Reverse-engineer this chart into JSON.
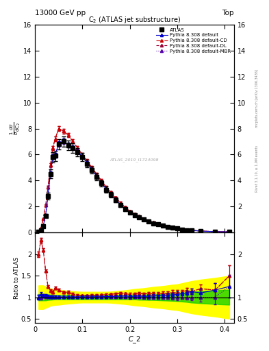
{
  "title_top": "13000 GeV pp",
  "title_right": "Top",
  "plot_title": "C$_2$ (ATLAS jet substructure)",
  "xlabel": "C_2",
  "ylabel_main": "$\\frac{1}{\\sigma}\\frac{d\\sigma}{dC_2}$",
  "ylabel_ratio": "Ratio to ATLAS",
  "watermark": "ATLAS_2019_I1724098",
  "ylim_main": [
    0,
    16
  ],
  "ylim_ratio": [
    0.4,
    2.51
  ],
  "x_data": [
    0.0075,
    0.0125,
    0.0175,
    0.0225,
    0.0275,
    0.0325,
    0.0375,
    0.0425,
    0.05,
    0.06,
    0.07,
    0.08,
    0.09,
    0.1,
    0.11,
    0.12,
    0.13,
    0.14,
    0.15,
    0.16,
    0.17,
    0.18,
    0.19,
    0.2,
    0.21,
    0.22,
    0.23,
    0.24,
    0.25,
    0.26,
    0.27,
    0.28,
    0.29,
    0.3,
    0.31,
    0.32,
    0.33,
    0.35,
    0.38,
    0.41
  ],
  "atlas_y": [
    0.05,
    0.15,
    0.5,
    1.3,
    2.8,
    4.5,
    5.8,
    5.9,
    6.8,
    7.0,
    6.7,
    6.5,
    6.2,
    5.8,
    5.3,
    4.8,
    4.3,
    3.8,
    3.3,
    2.9,
    2.5,
    2.1,
    1.8,
    1.55,
    1.35,
    1.15,
    1.0,
    0.85,
    0.72,
    0.62,
    0.52,
    0.44,
    0.37,
    0.3,
    0.24,
    0.19,
    0.15,
    0.1,
    0.06,
    0.04
  ],
  "atlas_yerr": [
    0.01,
    0.03,
    0.08,
    0.15,
    0.25,
    0.35,
    0.4,
    0.4,
    0.4,
    0.4,
    0.38,
    0.35,
    0.32,
    0.32,
    0.3,
    0.28,
    0.26,
    0.24,
    0.22,
    0.2,
    0.18,
    0.16,
    0.14,
    0.12,
    0.11,
    0.09,
    0.08,
    0.07,
    0.06,
    0.05,
    0.05,
    0.04,
    0.04,
    0.03,
    0.03,
    0.02,
    0.02,
    0.02,
    0.01,
    0.01
  ],
  "default_y": [
    0.05,
    0.16,
    0.52,
    1.35,
    2.85,
    4.55,
    5.85,
    5.95,
    6.85,
    7.05,
    6.75,
    6.55,
    6.25,
    5.85,
    5.35,
    4.85,
    4.35,
    3.85,
    3.35,
    2.95,
    2.55,
    2.15,
    1.85,
    1.58,
    1.38,
    1.18,
    1.02,
    0.87,
    0.74,
    0.64,
    0.54,
    0.46,
    0.39,
    0.32,
    0.26,
    0.21,
    0.17,
    0.11,
    0.07,
    0.05
  ],
  "default_cd_y": [
    0.1,
    0.35,
    1.05,
    2.1,
    3.5,
    5.2,
    6.5,
    7.2,
    8.0,
    7.8,
    7.5,
    7.0,
    6.5,
    6.0,
    5.5,
    5.0,
    4.5,
    4.0,
    3.5,
    3.1,
    2.7,
    2.3,
    1.95,
    1.65,
    1.45,
    1.25,
    1.08,
    0.92,
    0.78,
    0.67,
    0.57,
    0.48,
    0.41,
    0.33,
    0.27,
    0.22,
    0.17,
    0.12,
    0.07,
    0.06
  ],
  "default_dl_y": [
    0.1,
    0.35,
    1.05,
    2.1,
    3.5,
    5.2,
    6.5,
    7.2,
    8.0,
    7.8,
    7.5,
    7.0,
    6.5,
    6.0,
    5.5,
    5.0,
    4.5,
    4.0,
    3.5,
    3.1,
    2.7,
    2.3,
    1.95,
    1.65,
    1.45,
    1.25,
    1.08,
    0.92,
    0.78,
    0.67,
    0.57,
    0.48,
    0.41,
    0.33,
    0.27,
    0.22,
    0.17,
    0.12,
    0.07,
    0.06
  ],
  "default_mbr_y": [
    0.05,
    0.15,
    0.52,
    1.32,
    2.82,
    4.52,
    5.82,
    5.92,
    6.82,
    7.02,
    6.72,
    6.52,
    6.22,
    5.82,
    5.32,
    4.82,
    4.32,
    3.82,
    3.32,
    2.92,
    2.52,
    2.12,
    1.82,
    1.55,
    1.36,
    1.16,
    1.0,
    0.85,
    0.72,
    0.62,
    0.52,
    0.44,
    0.37,
    0.3,
    0.24,
    0.19,
    0.15,
    0.1,
    0.06,
    0.05
  ],
  "yerr_mc": [
    0.003,
    0.008,
    0.02,
    0.05,
    0.1,
    0.15,
    0.18,
    0.18,
    0.2,
    0.2,
    0.18,
    0.16,
    0.15,
    0.14,
    0.13,
    0.12,
    0.11,
    0.1,
    0.09,
    0.08,
    0.07,
    0.06,
    0.05,
    0.05,
    0.04,
    0.04,
    0.03,
    0.03,
    0.03,
    0.02,
    0.02,
    0.02,
    0.02,
    0.02,
    0.01,
    0.01,
    0.01,
    0.01,
    0.01,
    0.01
  ],
  "green_band": [
    0.15,
    0.15,
    0.15,
    0.15,
    0.13,
    0.12,
    0.11,
    0.1,
    0.1,
    0.1,
    0.1,
    0.1,
    0.1,
    0.1,
    0.1,
    0.1,
    0.1,
    0.1,
    0.1,
    0.1,
    0.1,
    0.1,
    0.1,
    0.1,
    0.1,
    0.12,
    0.12,
    0.13,
    0.13,
    0.14,
    0.15,
    0.16,
    0.17,
    0.18,
    0.2,
    0.22,
    0.25,
    0.28,
    0.32,
    0.35
  ],
  "yellow_band": [
    0.55,
    0.55,
    0.55,
    0.5,
    0.45,
    0.4,
    0.38,
    0.36,
    0.35,
    0.32,
    0.3,
    0.28,
    0.26,
    0.25,
    0.25,
    0.25,
    0.25,
    0.25,
    0.25,
    0.26,
    0.28,
    0.3,
    0.32,
    0.35,
    0.38,
    0.4,
    0.42,
    0.45,
    0.48,
    0.5,
    0.52,
    0.55,
    0.58,
    0.6,
    0.65,
    0.7,
    0.75,
    0.82,
    0.9,
    1.0
  ],
  "color_atlas": "#000000",
  "color_default": "#0000CC",
  "color_cd": "#CC0000",
  "color_dl": "#990033",
  "color_mbr": "#5500AA",
  "bg": "#ffffff"
}
